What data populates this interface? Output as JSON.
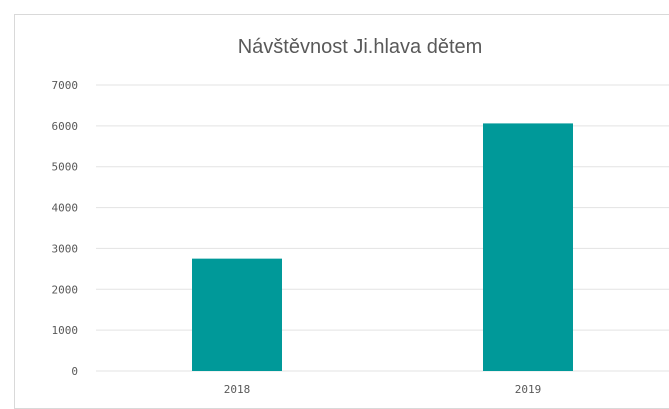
{
  "chart_data": {
    "type": "bar",
    "title": "Návštěvnost Ji.hlava dětem",
    "categories": [
      "2018",
      "2019"
    ],
    "values": [
      2750,
      6060
    ],
    "ylim": [
      0,
      7000
    ],
    "yticks": [
      "0",
      "1000",
      "2000",
      "3000",
      "4000",
      "5000",
      "6000",
      "7000"
    ],
    "grid": true,
    "bar_color": "#009999"
  }
}
